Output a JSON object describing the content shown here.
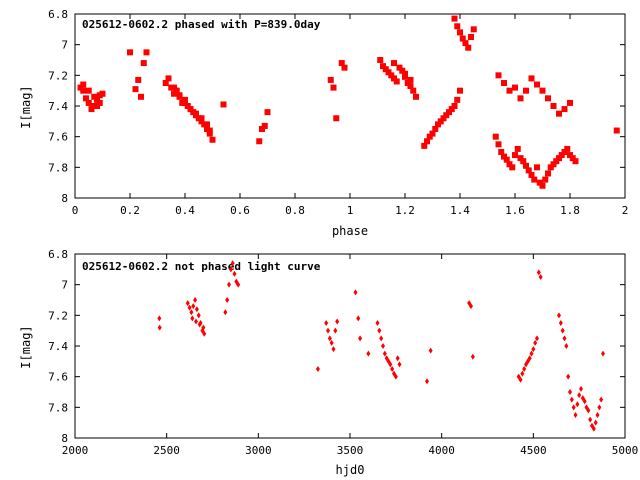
{
  "chart_data": [
    {
      "type": "scatter",
      "title": "025612-0602.2 phased with P=839.0day",
      "xlabel": "phase",
      "ylabel": "I[mag]",
      "xlim": [
        0,
        2
      ],
      "ylim": [
        6.8,
        8.0
      ],
      "y_inverted": true,
      "xticks": [
        "0",
        "0.2",
        "0.4",
        "0.6",
        "0.8",
        "1",
        "1.2",
        "1.4",
        "1.6",
        "1.8",
        "2"
      ],
      "yticks": [
        "6.8",
        "7",
        "7.2",
        "7.4",
        "7.6",
        "7.8",
        "8"
      ],
      "marker": "filled-square",
      "color": "#ff0000",
      "x": [
        0.02,
        0.03,
        0.04,
        0.05,
        0.06,
        0.07,
        0.08,
        0.09,
        0.1,
        0.03,
        0.05,
        0.07,
        0.08,
        0.09,
        0.2,
        0.22,
        0.23,
        0.24,
        0.25,
        0.26,
        0.33,
        0.34,
        0.35,
        0.36,
        0.37,
        0.38,
        0.39,
        0.4,
        0.41,
        0.42,
        0.43,
        0.44,
        0.45,
        0.46,
        0.47,
        0.48,
        0.49,
        0.5,
        0.36,
        0.38,
        0.4,
        0.42,
        0.44,
        0.46,
        0.48,
        0.49,
        0.54,
        0.67,
        0.68,
        0.69,
        0.7,
        0.93,
        0.94,
        0.95,
        0.97,
        0.98,
        1.11,
        1.12,
        1.13,
        1.14,
        1.15,
        1.16,
        1.17,
        1.18,
        1.19,
        1.2,
        1.21,
        1.22,
        1.23,
        1.24,
        1.16,
        1.2,
        1.22,
        1.27,
        1.28,
        1.29,
        1.3,
        1.31,
        1.32,
        1.33,
        1.34,
        1.35,
        1.36,
        1.37,
        1.38,
        1.39,
        1.4,
        1.38,
        1.39,
        1.4,
        1.41,
        1.42,
        1.43,
        1.44,
        1.45,
        1.53,
        1.54,
        1.55,
        1.56,
        1.57,
        1.58,
        1.59,
        1.6,
        1.61,
        1.62,
        1.63,
        1.64,
        1.65,
        1.66,
        1.67,
        1.68,
        1.69,
        1.7,
        1.71,
        1.72,
        1.73,
        1.74,
        1.75,
        1.76,
        1.77,
        1.78,
        1.79,
        1.8,
        1.81,
        1.82,
        1.54,
        1.56,
        1.58,
        1.6,
        1.62,
        1.64,
        1.66,
        1.68,
        1.7,
        1.72,
        1.74,
        1.76,
        1.78,
        1.8,
        1.97
      ],
      "y": [
        7.28,
        7.3,
        7.35,
        7.38,
        7.42,
        7.4,
        7.36,
        7.33,
        7.32,
        7.26,
        7.3,
        7.34,
        7.4,
        7.38,
        7.05,
        7.29,
        7.23,
        7.34,
        7.12,
        7.05,
        7.25,
        7.22,
        7.28,
        7.32,
        7.3,
        7.34,
        7.38,
        7.36,
        7.4,
        7.42,
        7.44,
        7.46,
        7.48,
        7.5,
        7.52,
        7.55,
        7.58,
        7.62,
        7.28,
        7.33,
        7.38,
        7.42,
        7.45,
        7.48,
        7.52,
        7.56,
        7.39,
        7.63,
        7.55,
        7.53,
        7.44,
        7.23,
        7.28,
        7.48,
        7.12,
        7.15,
        7.1,
        7.14,
        7.16,
        7.18,
        7.2,
        7.22,
        7.24,
        7.15,
        7.17,
        7.21,
        7.25,
        7.27,
        7.3,
        7.34,
        7.12,
        7.19,
        7.23,
        7.66,
        7.63,
        7.6,
        7.58,
        7.55,
        7.52,
        7.5,
        7.48,
        7.46,
        7.44,
        7.42,
        7.4,
        7.36,
        7.3,
        6.83,
        6.88,
        6.92,
        6.96,
        6.99,
        7.02,
        6.95,
        6.9,
        7.6,
        7.65,
        7.7,
        7.73,
        7.75,
        7.78,
        7.8,
        7.72,
        7.68,
        7.74,
        7.76,
        7.79,
        7.82,
        7.85,
        7.88,
        7.8,
        7.9,
        7.92,
        7.88,
        7.84,
        7.8,
        7.78,
        7.76,
        7.74,
        7.72,
        7.7,
        7.68,
        7.72,
        7.74,
        7.76,
        7.2,
        7.25,
        7.3,
        7.28,
        7.35,
        7.3,
        7.22,
        7.26,
        7.3,
        7.35,
        7.4,
        7.45,
        7.42,
        7.38,
        7.56
      ]
    },
    {
      "type": "scatter",
      "title": "025612-0602.2 not phased light curve",
      "xlabel": "hjd0",
      "ylabel": "I[mag]",
      "xlim": [
        2000,
        5000
      ],
      "ylim": [
        6.8,
        8.0
      ],
      "y_inverted": true,
      "xticks": [
        "2000",
        "2500",
        "3000",
        "3500",
        "4000",
        "4500",
        "5000"
      ],
      "yticks": [
        "6.8",
        "7",
        "7.2",
        "7.4",
        "7.6",
        "7.8",
        "8"
      ],
      "marker": "filled-diamond",
      "color": "#ff0000",
      "x": [
        2460,
        2462,
        2615,
        2625,
        2635,
        2645,
        2655,
        2665,
        2675,
        2685,
        2695,
        2705,
        2640,
        2660,
        2680,
        2700,
        2820,
        2830,
        2840,
        2850,
        2860,
        2870,
        2880,
        2890,
        3325,
        3370,
        3380,
        3390,
        3400,
        3410,
        3420,
        3430,
        3530,
        3545,
        3555,
        3600,
        3650,
        3660,
        3670,
        3680,
        3690,
        3700,
        3710,
        3720,
        3730,
        3740,
        3750,
        3760,
        3770,
        3920,
        3940,
        4150,
        4160,
        4170,
        4420,
        4430,
        4440,
        4450,
        4460,
        4470,
        4480,
        4490,
        4500,
        4510,
        4520,
        4530,
        4540,
        4640,
        4650,
        4660,
        4670,
        4680,
        4690,
        4700,
        4710,
        4720,
        4730,
        4740,
        4750,
        4760,
        4770,
        4780,
        4790,
        4800,
        4810,
        4820,
        4830,
        4840,
        4850,
        4860,
        4870,
        4880
      ],
      "y": [
        7.22,
        7.28,
        7.12,
        7.15,
        7.18,
        7.14,
        7.1,
        7.16,
        7.2,
        7.25,
        7.3,
        7.32,
        7.22,
        7.24,
        7.26,
        7.28,
        7.18,
        7.1,
        7.0,
        6.9,
        6.86,
        6.93,
        6.98,
        7.0,
        7.55,
        7.25,
        7.3,
        7.35,
        7.38,
        7.42,
        7.3,
        7.24,
        7.05,
        7.22,
        7.35,
        7.45,
        7.25,
        7.3,
        7.35,
        7.4,
        7.45,
        7.48,
        7.5,
        7.52,
        7.55,
        7.58,
        7.6,
        7.48,
        7.52,
        7.63,
        7.43,
        7.12,
        7.14,
        7.47,
        7.6,
        7.62,
        7.58,
        7.55,
        7.52,
        7.5,
        7.48,
        7.45,
        7.42,
        7.38,
        7.35,
        6.92,
        6.95,
        7.2,
        7.25,
        7.3,
        7.35,
        7.4,
        7.6,
        7.7,
        7.75,
        7.8,
        7.85,
        7.78,
        7.72,
        7.68,
        7.74,
        7.76,
        7.8,
        7.82,
        7.88,
        7.92,
        7.94,
        7.9,
        7.85,
        7.8,
        7.75,
        7.45
      ]
    }
  ]
}
